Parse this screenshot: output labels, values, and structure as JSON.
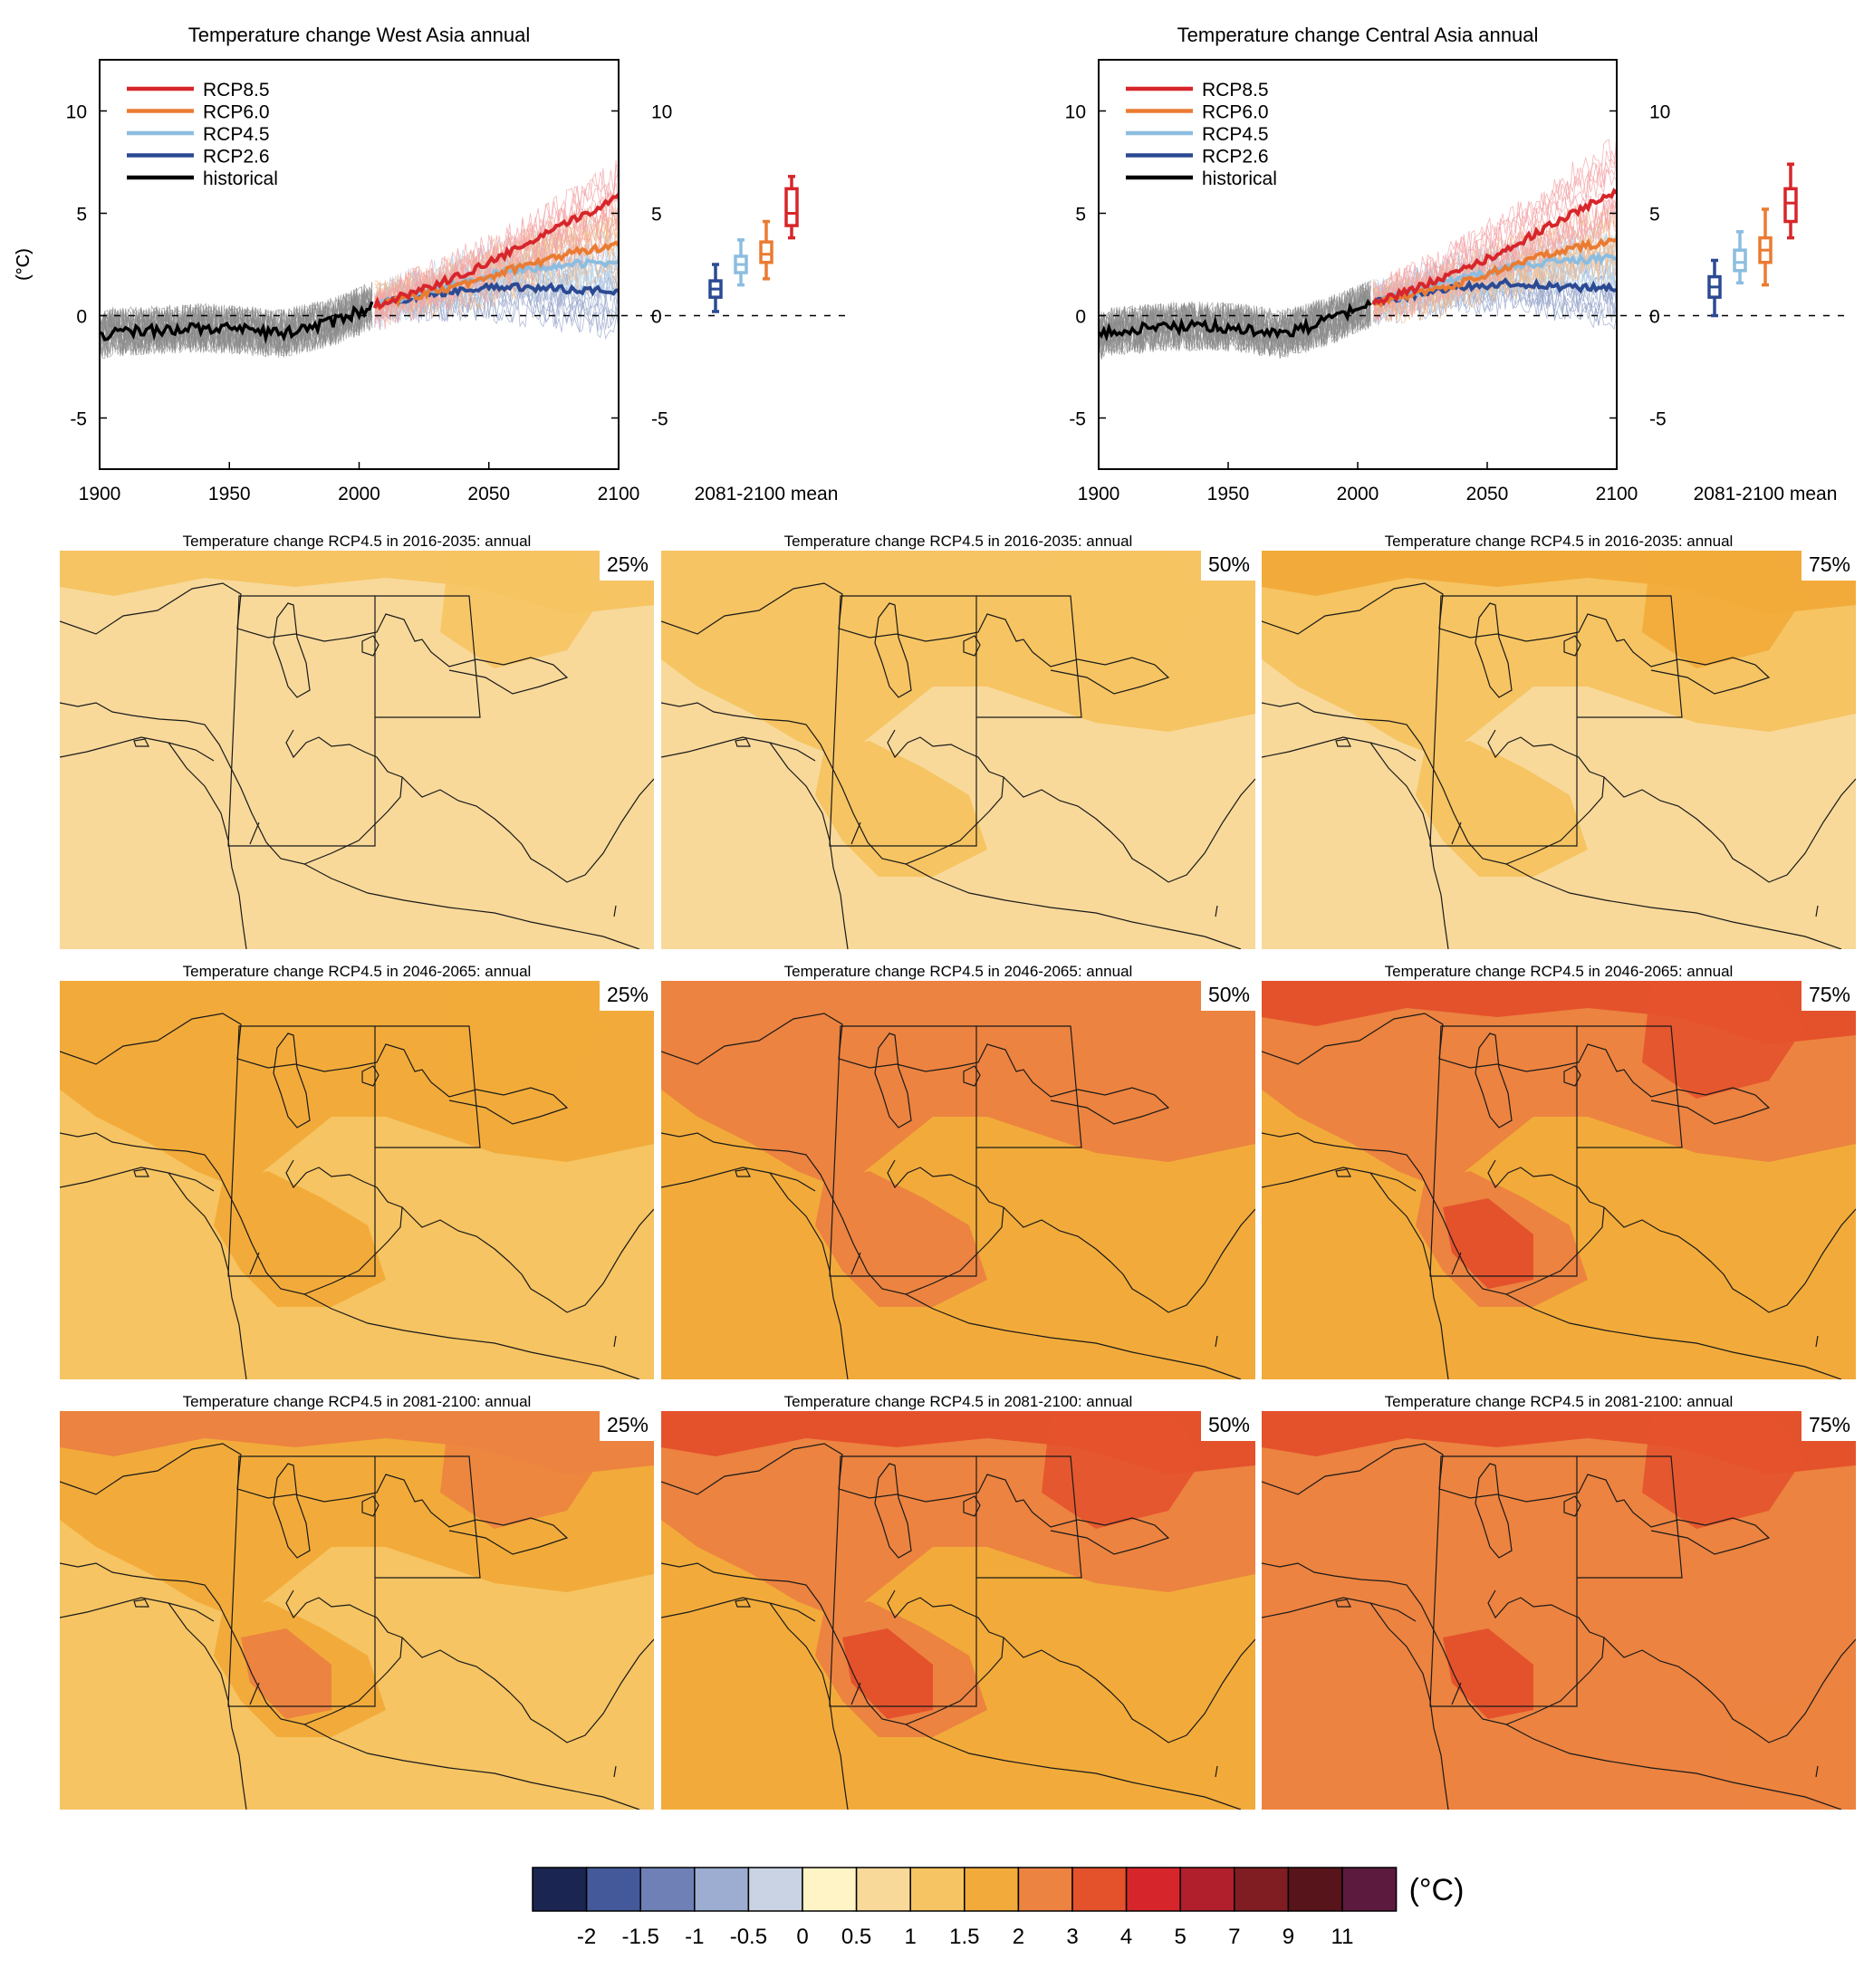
{
  "chart_data": [
    {
      "type": "line",
      "title": "Temperature change West Asia annual",
      "ylabel": "(°C)",
      "xlim": [
        1900,
        2100
      ],
      "ylim": [
        -7.5,
        12.5
      ],
      "xticks": [
        "1900",
        "1950",
        "2000",
        "2050",
        "2100"
      ],
      "yticks": [
        "-5",
        "0",
        "5",
        "10"
      ],
      "legend": "top-left",
      "series": [
        {
          "name": "RCP8.5",
          "color": "#d7262b",
          "x": [
            2006,
            2020,
            2040,
            2060,
            2080,
            2100
          ],
          "values": [
            0.5,
            1.1,
            2.0,
            3.2,
            4.5,
            5.8
          ]
        },
        {
          "name": "RCP6.0",
          "color": "#ea7b32",
          "x": [
            2006,
            2020,
            2040,
            2060,
            2080,
            2100
          ],
          "values": [
            0.5,
            0.9,
            1.5,
            2.3,
            3.0,
            3.5
          ]
        },
        {
          "name": "RCP4.5",
          "color": "#8cbde0",
          "x": [
            2006,
            2020,
            2040,
            2060,
            2080,
            2100
          ],
          "values": [
            0.5,
            1.0,
            1.7,
            2.2,
            2.5,
            2.6
          ]
        },
        {
          "name": "RCP2.6",
          "color": "#2c4a93",
          "x": [
            2006,
            2020,
            2040,
            2060,
            2080,
            2100
          ],
          "values": [
            0.5,
            0.9,
            1.3,
            1.4,
            1.3,
            1.2
          ]
        },
        {
          "name": "historical",
          "color": "#000000",
          "x": [
            1900,
            1905,
            1920,
            1940,
            1955,
            1970,
            1980,
            1990,
            2000,
            2005
          ],
          "values": [
            -1.0,
            -0.8,
            -0.7,
            -0.6,
            -0.7,
            -0.9,
            -0.6,
            -0.3,
            0.2,
            0.5
          ]
        }
      ],
      "boxes_2081_2100": [
        {
          "name": "RCP2.6",
          "color": "#2c4a93",
          "min": 0.2,
          "q1": 0.9,
          "median": 1.3,
          "q3": 1.7,
          "max": 2.5
        },
        {
          "name": "RCP4.5",
          "color": "#8cbde0",
          "min": 1.5,
          "q1": 2.1,
          "median": 2.5,
          "q3": 2.9,
          "max": 3.7
        },
        {
          "name": "RCP6.0",
          "color": "#ea7b32",
          "min": 1.8,
          "q1": 2.6,
          "median": 3.0,
          "q3": 3.6,
          "max": 4.6
        },
        {
          "name": "RCP8.5",
          "color": "#d7262b",
          "min": 3.8,
          "q1": 4.4,
          "median": 5.0,
          "q3": 6.2,
          "max": 6.8
        }
      ],
      "box_xlabel": "2081-2100 mean"
    },
    {
      "type": "line",
      "title": "Temperature change Central Asia annual",
      "ylabel": "(°C)",
      "xlim": [
        1900,
        2100
      ],
      "ylim": [
        -7.5,
        12.5
      ],
      "xticks": [
        "1900",
        "1950",
        "2000",
        "2050",
        "2100"
      ],
      "yticks": [
        "-5",
        "0",
        "5",
        "10"
      ],
      "legend": "top-left",
      "series": [
        {
          "name": "RCP8.5",
          "color": "#d7262b",
          "x": [
            2006,
            2020,
            2040,
            2060,
            2080,
            2100
          ],
          "values": [
            0.6,
            1.2,
            2.2,
            3.4,
            4.8,
            6.1
          ]
        },
        {
          "name": "RCP6.0",
          "color": "#ea7b32",
          "x": [
            2006,
            2020,
            2040,
            2060,
            2080,
            2100
          ],
          "values": [
            0.6,
            1.0,
            1.6,
            2.5,
            3.2,
            3.7
          ]
        },
        {
          "name": "RCP4.5",
          "color": "#8cbde0",
          "x": [
            2006,
            2020,
            2040,
            2060,
            2080,
            2100
          ],
          "values": [
            0.6,
            1.1,
            1.8,
            2.4,
            2.7,
            2.8
          ]
        },
        {
          "name": "RCP2.6",
          "color": "#2c4a93",
          "x": [
            2006,
            2020,
            2040,
            2060,
            2080,
            2100
          ],
          "values": [
            0.6,
            1.0,
            1.4,
            1.6,
            1.4,
            1.3
          ]
        },
        {
          "name": "historical",
          "color": "#000000",
          "x": [
            1900,
            1905,
            1920,
            1940,
            1955,
            1970,
            1980,
            1990,
            2000,
            2005
          ],
          "values": [
            -1.0,
            -0.8,
            -0.6,
            -0.5,
            -0.6,
            -0.9,
            -0.6,
            -0.2,
            0.3,
            0.6
          ]
        }
      ],
      "boxes_2081_2100": [
        {
          "name": "RCP2.6",
          "color": "#2c4a93",
          "min": 0.0,
          "q1": 0.9,
          "median": 1.4,
          "q3": 1.9,
          "max": 2.7
        },
        {
          "name": "RCP4.5",
          "color": "#8cbde0",
          "min": 1.6,
          "q1": 2.2,
          "median": 2.6,
          "q3": 3.2,
          "max": 4.1
        },
        {
          "name": "RCP6.0",
          "color": "#ea7b32",
          "min": 1.5,
          "q1": 2.6,
          "median": 3.2,
          "q3": 3.8,
          "max": 5.2
        },
        {
          "name": "RCP8.5",
          "color": "#d7262b",
          "min": 3.8,
          "q1": 4.6,
          "median": 5.5,
          "q3": 6.2,
          "max": 7.4
        }
      ],
      "box_xlabel": "2081-2100 mean"
    },
    {
      "type": "heatmap",
      "panels": [
        {
          "title": "Temperature change RCP4.5 in 2016-2035: annual",
          "percentile": "25%",
          "base": "#f8d99a",
          "mid": "#f8d99a",
          "hot": "#f6c462"
        },
        {
          "title": "Temperature change RCP4.5 in 2016-2035: annual",
          "percentile": "50%",
          "base": "#f8d99a",
          "mid": "#f6c462",
          "hot": "#f6c462"
        },
        {
          "title": "Temperature change RCP4.5 in 2016-2035: annual",
          "percentile": "75%",
          "base": "#f8d99a",
          "mid": "#f6c462",
          "hot": "#f2ab3a"
        },
        {
          "title": "Temperature change RCP4.5 in 2046-2065: annual",
          "percentile": "25%",
          "base": "#f6c462",
          "mid": "#f2ab3a",
          "hot": "#f2ab3a"
        },
        {
          "title": "Temperature change RCP4.5 in 2046-2065: annual",
          "percentile": "50%",
          "base": "#f2ab3a",
          "mid": "#ec8340",
          "hot": "#ec8340"
        },
        {
          "title": "Temperature change RCP4.5 in 2046-2065: annual",
          "percentile": "75%",
          "base": "#f2ab3a",
          "mid": "#ec8340",
          "hot": "#e4522c"
        },
        {
          "title": "Temperature change RCP4.5 in 2081-2100: annual",
          "percentile": "25%",
          "base": "#f6c462",
          "mid": "#f2ab3a",
          "hot": "#ec8340"
        },
        {
          "title": "Temperature change RCP4.5 in 2081-2100: annual",
          "percentile": "50%",
          "base": "#f2ab3a",
          "mid": "#ec8340",
          "hot": "#e4522c"
        },
        {
          "title": "Temperature change RCP4.5 in 2081-2100: annual",
          "percentile": "75%",
          "base": "#ec8340",
          "mid": "#ec8340",
          "hot": "#e4522c"
        }
      ]
    }
  ],
  "colorbar": {
    "unit": "(°C)",
    "colors": [
      "#1b2552",
      "#44599a",
      "#6e80b6",
      "#9cadd1",
      "#c9d3e3",
      "#fff4c6",
      "#f8d99a",
      "#f6c462",
      "#f2ab3a",
      "#ec8340",
      "#e4522c",
      "#d7262b",
      "#b11f2c",
      "#7f1d22",
      "#57141a",
      "#5c1a3e"
    ],
    "labels": [
      "-2",
      "-1.5",
      "-1",
      "-0.5",
      "0",
      "0.5",
      "1",
      "1.5",
      "2",
      "3",
      "4",
      "5",
      "7",
      "9",
      "11"
    ]
  }
}
